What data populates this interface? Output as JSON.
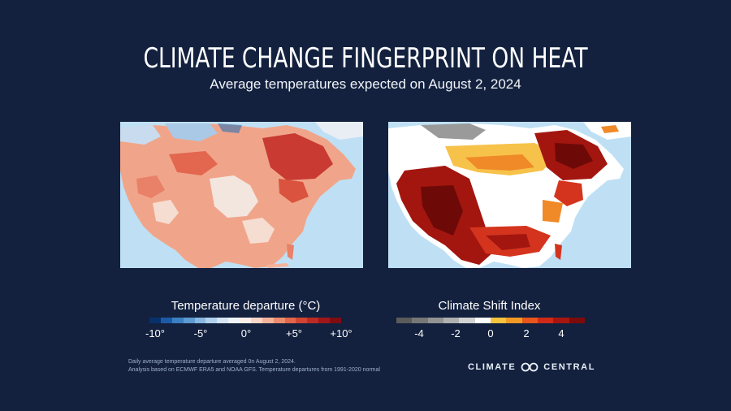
{
  "header": {
    "title": "CLIMATE CHANGE FINGERPRINT ON HEAT",
    "subtitle": "Average temperatures expected on August 2, 2024"
  },
  "maps": {
    "left_colors": {
      "ocean": "#bfe0f4",
      "cold": "#2e6fb3",
      "cool": "#a9c9e6",
      "neutral": "#f3e6df",
      "warm": "#f0a58a",
      "hot": "#e3664f",
      "hotter": "#c93a32"
    },
    "right_colors": {
      "ocean": "#bfe0f4",
      "gray": "#9a9a9a",
      "white": "#ffffff",
      "yellow": "#f7c24a",
      "orange": "#f08a28",
      "red": "#d4341e",
      "darkred": "#a3160f",
      "maroon": "#6d0a08"
    }
  },
  "legend_temperature": {
    "title": "Temperature departure (°C)",
    "ticks": [
      "-10°",
      "-5°",
      "0°",
      "+5°",
      "+10°"
    ],
    "colors": [
      "#08306b",
      "#1c5aa6",
      "#3a7fc1",
      "#5d9bd2",
      "#88b7e0",
      "#b2d1ec",
      "#d6e6f4",
      "#eef4fa",
      "#fbeee8",
      "#f8d5c6",
      "#f3b39b",
      "#ec8c6c",
      "#e2664a",
      "#d24432",
      "#bd2a24",
      "#9f1719",
      "#7f0c13"
    ]
  },
  "legend_csi": {
    "title": "Climate Shift Index",
    "ticks": [
      "-4",
      "-2",
      "0",
      "2",
      "4"
    ],
    "colors": [
      "#5b5b5b",
      "#777777",
      "#939393",
      "#b0b0b0",
      "#d2d2d2",
      "#ffffff",
      "#f9c33e",
      "#f39a24",
      "#e8561b",
      "#d02a17",
      "#a81610",
      "#7c0b0a"
    ]
  },
  "footnotes": [
    "Daily average temperature departure averaged 0n August 2, 2024.",
    "Analysis based on ECMWF ERA5 and NOAA GFS. Temperature departures from 1991-2020 normal"
  ],
  "brand": {
    "left": "CLIMATE",
    "right": "CENTRAL"
  }
}
